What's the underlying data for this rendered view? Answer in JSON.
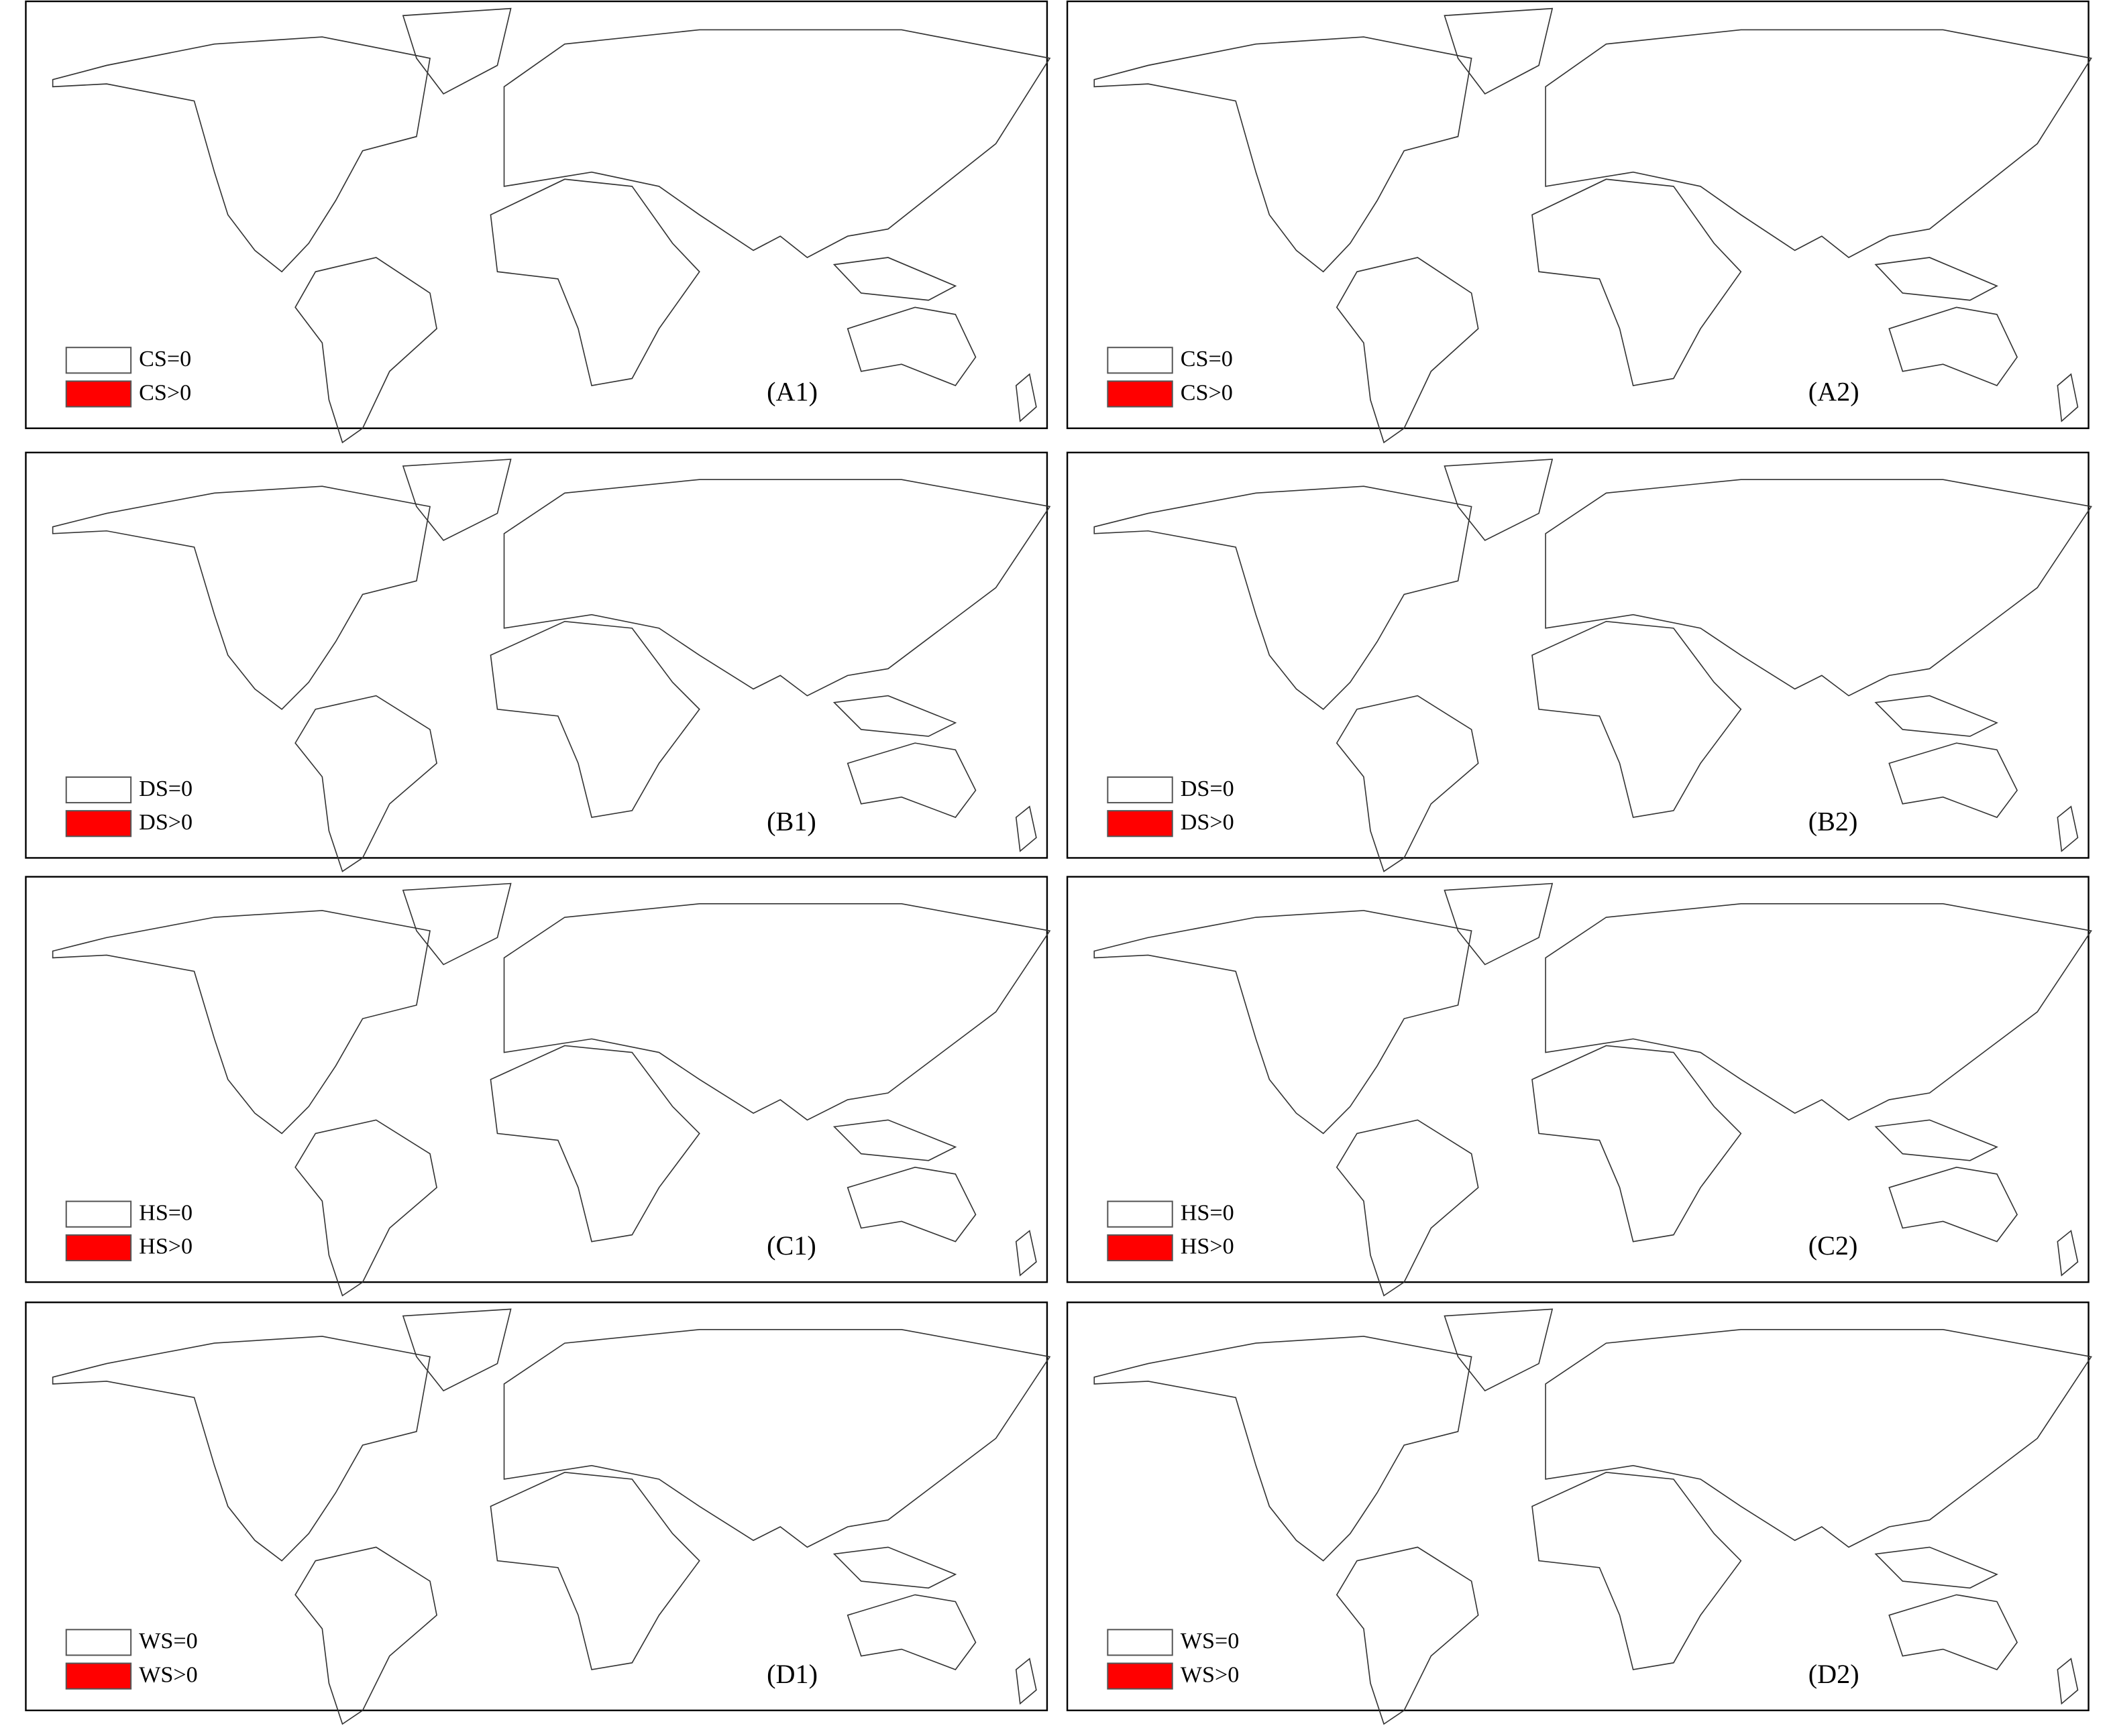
{
  "panels": [
    {
      "label": "(A1)",
      "legend": [
        "CS=0",
        "CS>0"
      ]
    },
    {
      "label": "(A2)",
      "legend": [
        "CS=0",
        "CS>0"
      ]
    },
    {
      "label": "(B1)",
      "legend": [
        "DS=0",
        "DS>0"
      ]
    },
    {
      "label": "(B2)",
      "legend": [
        "DS=0",
        "DS>0"
      ]
    },
    {
      "label": "(C1)",
      "legend": [
        "HS=0",
        "HS>0"
      ]
    },
    {
      "label": "(C2)",
      "legend": [
        "HS=0",
        "HS>0"
      ]
    },
    {
      "label": "(D1)",
      "legend": [
        "WS=0",
        "WS>0"
      ]
    },
    {
      "label": "(D2)",
      "legend": [
        "WS=0",
        "WS>0"
      ]
    }
  ]
}
